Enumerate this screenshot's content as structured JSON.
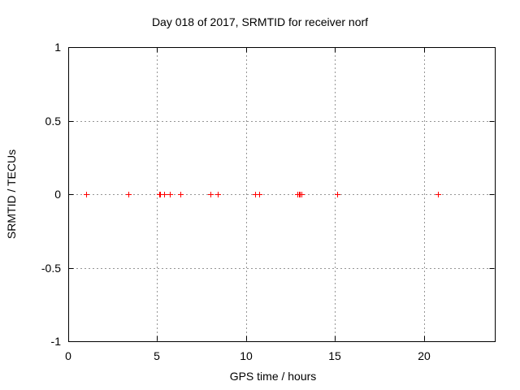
{
  "chart_data": {
    "type": "scatter",
    "title": "Day 018 of 2017, SRMTID for receiver norf",
    "xlabel": "GPS time / hours",
    "ylabel": "SRMTID / TECUs",
    "xlim": [
      0,
      24
    ],
    "ylim": [
      -1,
      1
    ],
    "xticks": [
      0,
      5,
      10,
      15,
      20
    ],
    "xtick_labels": [
      "0",
      "5",
      "10",
      "15",
      "20"
    ],
    "yticks": [
      -1,
      -0.5,
      0,
      0.5,
      1
    ],
    "ytick_labels": [
      "-1",
      "-0.5",
      "0",
      "0.5",
      "1"
    ],
    "grid": true,
    "legend": "none",
    "marker": "plus",
    "colors": {
      "marker": "#ff0000",
      "grid": "#969696",
      "axis": "#000000",
      "text": "#000000",
      "background": "#ffffff"
    },
    "series": [
      {
        "name": "SRMTID",
        "x": [
          1.0,
          3.4,
          5.1,
          5.15,
          5.4,
          5.7,
          6.3,
          8.0,
          8.4,
          10.5,
          10.75,
          12.9,
          13.0,
          13.05,
          13.1,
          15.15,
          20.8
        ],
        "y": [
          0,
          0,
          0,
          0,
          0,
          0,
          0,
          0,
          0,
          0,
          0,
          0,
          0,
          0,
          0,
          0,
          0
        ]
      }
    ]
  }
}
